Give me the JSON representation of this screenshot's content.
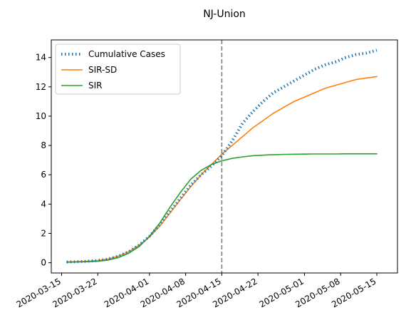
{
  "chart_data": {
    "type": "line",
    "title": "NJ-Union",
    "xlabel": "",
    "ylabel": "",
    "x_type": "date",
    "xlim": [
      "2020-03-13",
      "2020-05-19"
    ],
    "ylim": [
      -0.7,
      15.2
    ],
    "x_ticks": [
      "2020-03-15",
      "2020-03-22",
      "2020-04-01",
      "2020-04-08",
      "2020-04-15",
      "2020-04-22",
      "2020-05-01",
      "2020-05-08",
      "2020-05-15"
    ],
    "y_ticks": [
      0,
      2,
      4,
      6,
      8,
      10,
      12,
      14
    ],
    "grid": false,
    "legend_position": "top-left",
    "vline": {
      "x": "2020-04-15",
      "color": "#808080",
      "style": "dashed"
    },
    "series": [
      {
        "name": "Cumulative Cases",
        "color": "#1f77b4",
        "style": "dotted",
        "x": [
          "2020-03-16",
          "2020-03-18",
          "2020-03-20",
          "2020-03-22",
          "2020-03-24",
          "2020-03-26",
          "2020-03-28",
          "2020-03-30",
          "2020-04-01",
          "2020-04-03",
          "2020-04-05",
          "2020-04-07",
          "2020-04-09",
          "2020-04-11",
          "2020-04-13",
          "2020-04-15",
          "2020-04-17",
          "2020-04-19",
          "2020-04-21",
          "2020-04-23",
          "2020-04-25",
          "2020-04-27",
          "2020-04-29",
          "2020-05-01",
          "2020-05-03",
          "2020-05-05",
          "2020-05-07",
          "2020-05-09",
          "2020-05-11",
          "2020-05-13",
          "2020-05-15"
        ],
        "y": [
          0.05,
          0.07,
          0.1,
          0.15,
          0.25,
          0.45,
          0.75,
          1.2,
          1.8,
          2.6,
          3.5,
          4.4,
          5.3,
          6.0,
          6.6,
          7.3,
          8.3,
          9.5,
          10.3,
          11.0,
          11.6,
          12.0,
          12.4,
          12.8,
          13.2,
          13.5,
          13.7,
          14.0,
          14.2,
          14.3,
          14.5
        ]
      },
      {
        "name": "SIR-SD",
        "color": "#ff7f0e",
        "style": "solid",
        "x": [
          "2020-03-16",
          "2020-03-18",
          "2020-03-20",
          "2020-03-22",
          "2020-03-24",
          "2020-03-26",
          "2020-03-28",
          "2020-03-30",
          "2020-04-01",
          "2020-04-03",
          "2020-04-05",
          "2020-04-07",
          "2020-04-09",
          "2020-04-11",
          "2020-04-13",
          "2020-04-15",
          "2020-04-17",
          "2020-04-19",
          "2020-04-21",
          "2020-04-23",
          "2020-04-25",
          "2020-04-27",
          "2020-04-29",
          "2020-05-01",
          "2020-05-03",
          "2020-05-05",
          "2020-05-07",
          "2020-05-09",
          "2020-05-11",
          "2020-05-13",
          "2020-05-15"
        ],
        "y": [
          0.05,
          0.07,
          0.1,
          0.15,
          0.25,
          0.45,
          0.75,
          1.2,
          1.75,
          2.5,
          3.4,
          4.3,
          5.2,
          6.0,
          6.7,
          7.4,
          8.0,
          8.6,
          9.2,
          9.7,
          10.2,
          10.6,
          11.0,
          11.3,
          11.6,
          11.9,
          12.1,
          12.3,
          12.5,
          12.6,
          12.7
        ]
      },
      {
        "name": "SIR",
        "color": "#2ca02c",
        "style": "solid",
        "x": [
          "2020-03-16",
          "2020-03-18",
          "2020-03-20",
          "2020-03-22",
          "2020-03-24",
          "2020-03-26",
          "2020-03-28",
          "2020-03-30",
          "2020-04-01",
          "2020-04-03",
          "2020-04-05",
          "2020-04-07",
          "2020-04-09",
          "2020-04-11",
          "2020-04-13",
          "2020-04-15",
          "2020-04-17",
          "2020-04-19",
          "2020-04-21",
          "2020-04-23",
          "2020-04-25",
          "2020-04-27",
          "2020-04-29",
          "2020-05-01",
          "2020-05-03",
          "2020-05-05",
          "2020-05-07",
          "2020-05-09",
          "2020-05-11",
          "2020-05-13",
          "2020-05-15"
        ],
        "y": [
          0.03,
          0.05,
          0.07,
          0.1,
          0.18,
          0.35,
          0.65,
          1.1,
          1.8,
          2.7,
          3.8,
          4.8,
          5.7,
          6.3,
          6.7,
          6.95,
          7.12,
          7.22,
          7.3,
          7.34,
          7.37,
          7.39,
          7.4,
          7.41,
          7.42,
          7.42,
          7.42,
          7.43,
          7.43,
          7.43,
          7.43
        ]
      }
    ]
  }
}
